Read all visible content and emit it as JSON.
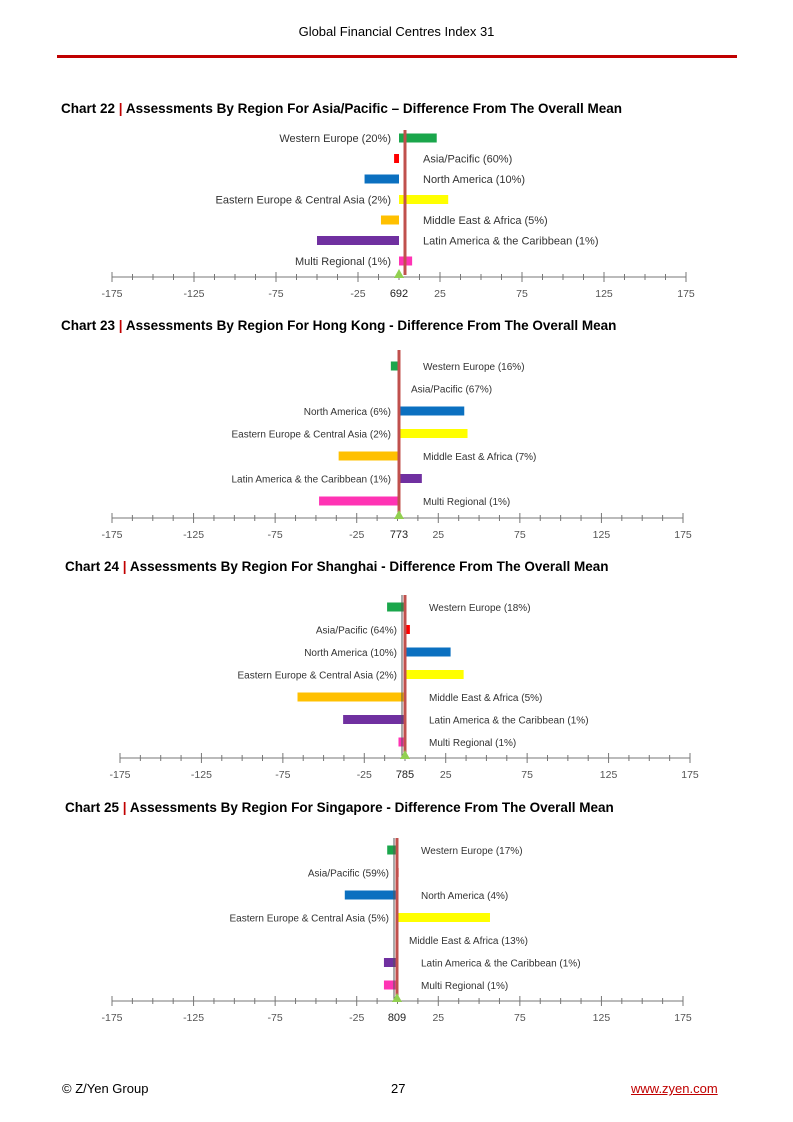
{
  "header": {
    "title": "Global Financial Centres Index 31"
  },
  "colors": {
    "accent": "#c00000",
    "Western Europe": "#1aa64b",
    "Asia/Pacific": "#ff0000",
    "North America": "#0b70c0",
    "Eastern Europe & Central Asia": "#ffff00",
    "Middle East & Africa": "#ffc000",
    "Latin America & the Caribbean": "#7030a0",
    "Multi Regional": "#ff33b4",
    "mean_line": "#c0504d",
    "marker": "#92d050"
  },
  "chart_data": [
    {
      "type": "bar",
      "orientation": "horizontal",
      "title_prefix": "Chart 22",
      "title_sep": "|",
      "title": "Assessments By Region For Asia/Pacific – Difference From The Overall Mean",
      "mean_label": "692",
      "xlim": [
        -175,
        175
      ],
      "ticks": [
        "-175",
        "-125",
        "-75",
        "-25",
        "25",
        "75",
        "125",
        "175"
      ],
      "categories": [
        "Western Europe (20%)",
        "Asia/Pacific (60%)",
        "North America (10%)",
        "Eastern Europe & Central Asia (2%)",
        "Middle East & Africa (5%)",
        "Latin America & the Caribbean (1%)",
        "Multi Regional (1%)"
      ],
      "values": [
        23,
        -3,
        -21,
        30,
        -11,
        -50,
        8
      ]
    },
    {
      "type": "bar",
      "orientation": "horizontal",
      "title_prefix": "Chart 23",
      "title_sep": "|",
      "title": "Assessments By Region For Hong Kong - Difference From The Overall Mean",
      "mean_label": "773",
      "xlim": [
        -175,
        175
      ],
      "ticks": [
        "-175",
        "-125",
        "-75",
        "-25",
        "25",
        "75",
        "125",
        "175"
      ],
      "categories": [
        "Western Europe (16%)",
        "Asia/Pacific (67%)",
        "North America (6%)",
        "Eastern Europe & Central Asia (2%)",
        "Middle East & Africa (7%)",
        "Latin America & the Caribbean (1%)",
        "Multi Regional (1%)"
      ],
      "values": [
        -5,
        0,
        40,
        42,
        -37,
        14,
        -49
      ]
    },
    {
      "type": "bar",
      "orientation": "horizontal",
      "title_prefix": "Chart 24",
      "title_sep": "|",
      "title": "Assessments By Region For Shanghai - Difference From The Overall Mean",
      "mean_label": "785",
      "xlim": [
        -175,
        175
      ],
      "ticks": [
        "-175",
        "-125",
        "-75",
        "-25",
        "25",
        "75",
        "125",
        "175"
      ],
      "categories": [
        "Western Europe (18%)",
        "Asia/Pacific (64%)",
        "North America (10%)",
        "Eastern Europe & Central Asia (2%)",
        "Middle East & Africa (5%)",
        "Latin America & the Caribbean (1%)",
        "Multi Regional (1%)"
      ],
      "values": [
        -11,
        3,
        28,
        36,
        -66,
        -38,
        -4
      ]
    },
    {
      "type": "bar",
      "orientation": "horizontal",
      "title_prefix": "Chart 25",
      "title_sep": "|",
      "title": "Assessments By Region For Singapore - Difference From The Overall Mean",
      "mean_label": "809",
      "xlim": [
        -175,
        175
      ],
      "ticks": [
        "-175",
        "-125",
        "-75",
        "-25",
        "25",
        "75",
        "125",
        "175"
      ],
      "categories": [
        "Western Europe (17%)",
        "Asia/Pacific (59%)",
        "North America (4%)",
        "Eastern Europe & Central Asia (5%)",
        "Middle East & Africa (13%)",
        "Latin America & the Caribbean (1%)",
        "Multi Regional (1%)"
      ],
      "values": [
        -6,
        1,
        -32,
        57,
        0,
        -8,
        -8
      ]
    }
  ],
  "footer": {
    "copyright": "© Z/Yen Group",
    "page_number": "27",
    "link_text": "www.zyen.com"
  }
}
